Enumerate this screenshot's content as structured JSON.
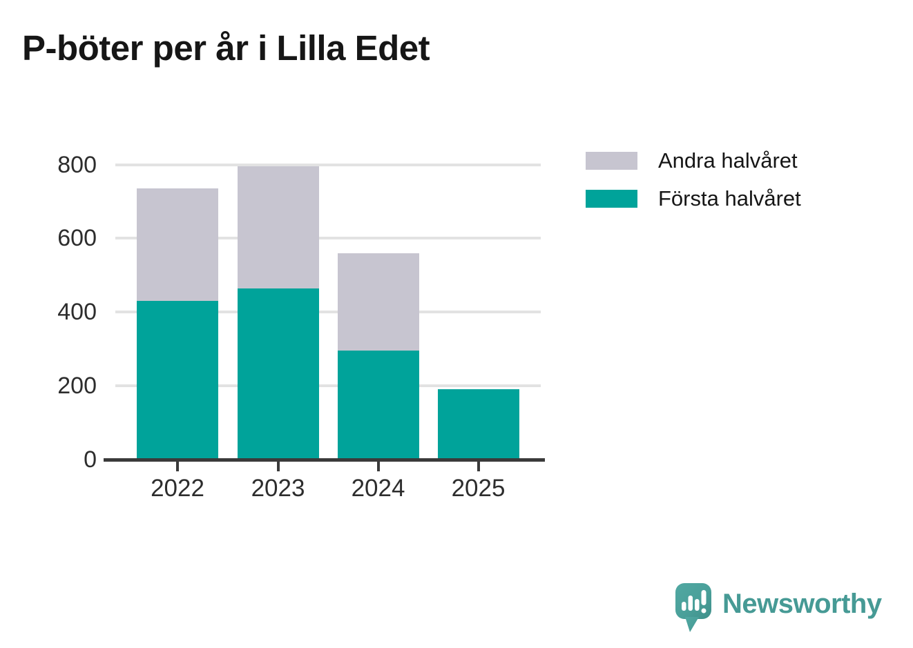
{
  "title": "P-böter per år i Lilla Edet",
  "legend": {
    "items": [
      {
        "label": "Andra halvåret",
        "color": "#c7c5d0"
      },
      {
        "label": "Första halvåret",
        "color": "#00a39a"
      }
    ]
  },
  "branding": {
    "wordmark": "Newsworthy",
    "logo_icon": "newsworthy-speech-bubble-chart-icon"
  },
  "colors": {
    "first_half": "#00a39a",
    "second_half": "#c7c5d0",
    "grid": "#e2e2e2",
    "axis": "#3a3a3a",
    "tick_text": "#2d2d2d",
    "title_text": "#161616",
    "brand_teal": "#469a95"
  },
  "chart_data": {
    "type": "bar",
    "stacked": true,
    "title": "P-böter per år i Lilla Edet",
    "categories": [
      "2022",
      "2023",
      "2024",
      "2025"
    ],
    "series": [
      {
        "name": "Första halvåret",
        "color": "#00a39a",
        "values": [
          430,
          465,
          295,
          190
        ]
      },
      {
        "name": "Andra halvåret",
        "color": "#c7c5d0",
        "values": [
          305,
          330,
          265,
          0
        ]
      }
    ],
    "xlabel": "",
    "ylabel": "",
    "ylim": [
      0,
      800
    ],
    "yticks": [
      0,
      200,
      400,
      600,
      800
    ],
    "grid": true,
    "grid_axis": "y",
    "legend_position": "outside-top-right"
  }
}
